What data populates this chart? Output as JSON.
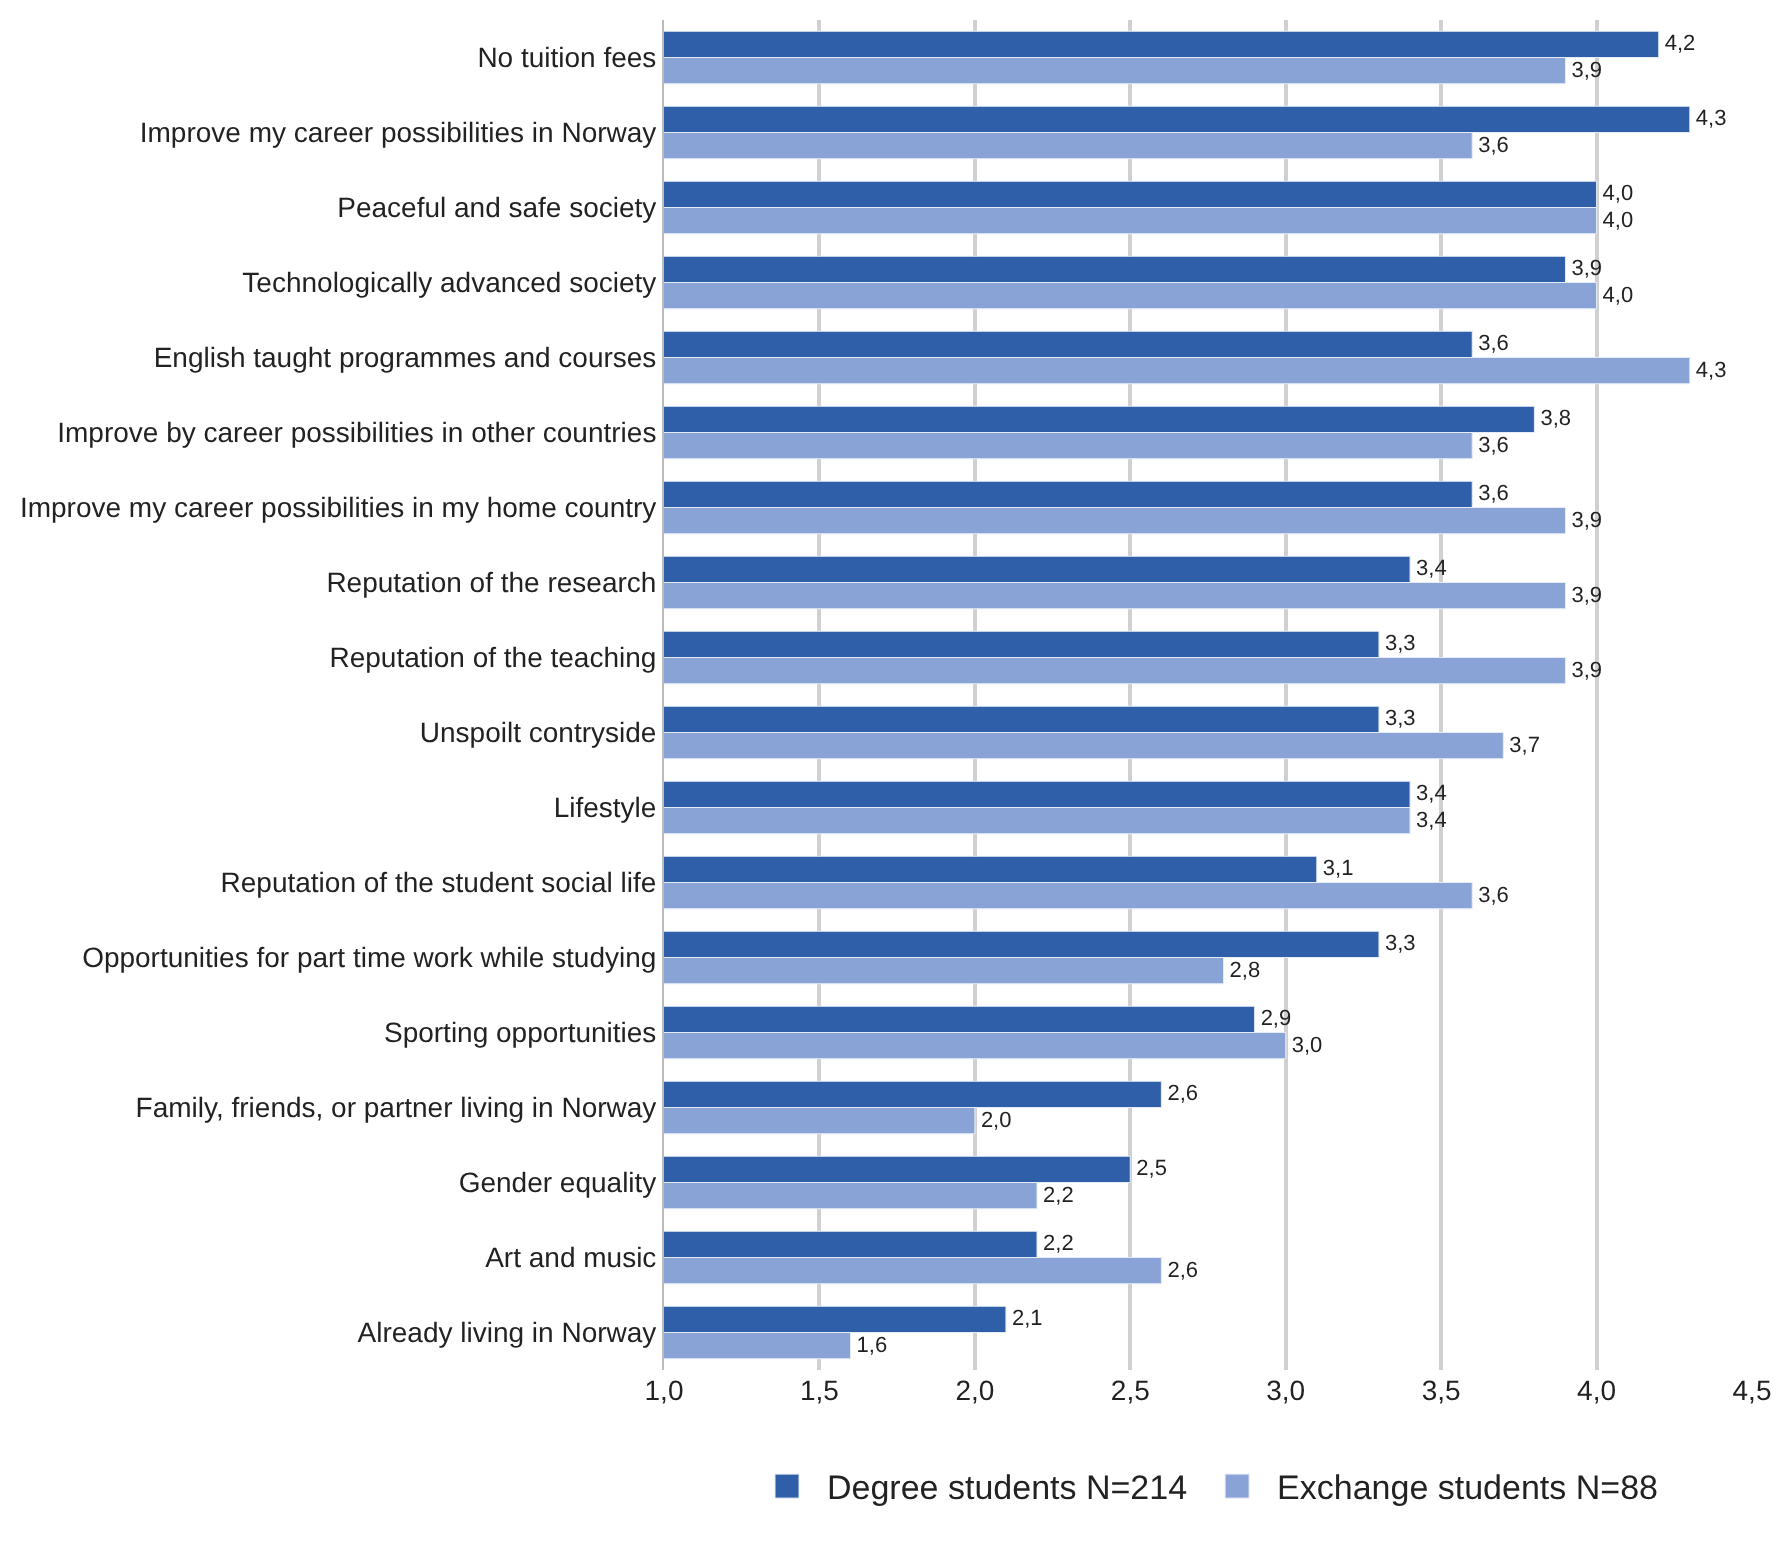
{
  "chart_data": {
    "type": "bar",
    "orientation": "horizontal",
    "categories": [
      "No tuition fees",
      "Improve my career possibilities in Norway",
      "Peaceful and safe society",
      "Technologically advanced society",
      "English taught programmes and courses",
      "Improve by career possibilities in other countries",
      "Improve my career possibilities in my home country",
      "Reputation of the research",
      "Reputation of the teaching",
      "Unspoilt contryside",
      "Lifestyle",
      "Reputation of the student social life",
      "Opportunities for part time work while studying",
      "Sporting opportunities",
      "Family, friends, or partner living in Norway",
      "Gender equality",
      "Art and music",
      "Already living in Norway"
    ],
    "series": [
      {
        "name": "Degree students N=214",
        "color": "#2e5fa8",
        "values": [
          4.2,
          4.3,
          4.0,
          3.9,
          3.6,
          3.8,
          3.6,
          3.4,
          3.3,
          3.3,
          3.4,
          3.1,
          3.3,
          2.9,
          2.6,
          2.5,
          2.2,
          2.1
        ],
        "value_labels": [
          "4,2",
          "4,3",
          "4,0",
          "3,9",
          "3,6",
          "3,8",
          "3,6",
          "3,4",
          "3,3",
          "3,3",
          "3,4",
          "3,1",
          "3,3",
          "2,9",
          "2,6",
          "2,5",
          "2,2",
          "2,1"
        ]
      },
      {
        "name": "Exchange students N=88",
        "color": "#8aa3d6",
        "values": [
          3.9,
          3.6,
          4.0,
          4.0,
          4.3,
          3.6,
          3.9,
          3.9,
          3.9,
          3.7,
          3.4,
          3.6,
          2.8,
          3.0,
          2.0,
          2.2,
          2.6,
          1.6
        ],
        "value_labels": [
          "3,9",
          "3,6",
          "4,0",
          "4,0",
          "4,3",
          "3,6",
          "3,9",
          "3,9",
          "3,9",
          "3,7",
          "3,4",
          "3,6",
          "2,8",
          "3,0",
          "2,0",
          "2,2",
          "2,6",
          "1,6"
        ]
      }
    ],
    "xlim": [
      1.0,
      4.5
    ],
    "xticks": [
      {
        "value": 1.0,
        "label": "1,0"
      },
      {
        "value": 1.5,
        "label": "1,5"
      },
      {
        "value": 2.0,
        "label": "2,0"
      },
      {
        "value": 2.5,
        "label": "2,5"
      },
      {
        "value": 3.0,
        "label": "3,0"
      },
      {
        "value": 3.5,
        "label": "3,5"
      },
      {
        "value": 4.0,
        "label": "4,0"
      },
      {
        "value": 4.5,
        "label": "4,5"
      }
    ],
    "grid": "x",
    "legend": "bottom"
  }
}
